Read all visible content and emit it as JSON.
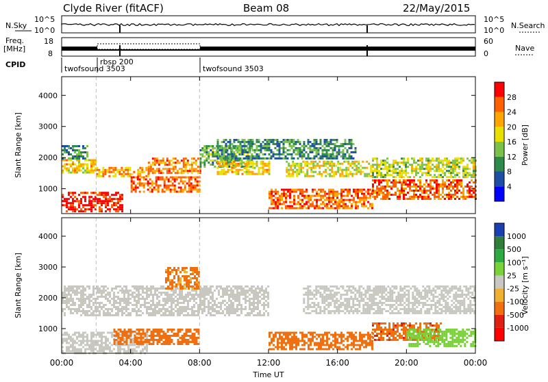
{
  "header": {
    "station": "Clyde River (fitACF)",
    "beam": "Beam 08",
    "date": "22/May/2015"
  },
  "top_panels": {
    "nsky_label": "N.Sky",
    "nsearch_label": "N.Search",
    "freq_label_1": "Freq.",
    "freq_label_2": "[MHz]",
    "nave_label": "Nave",
    "cpid_label": "CPID",
    "nsky_ticks": [
      "10^5",
      "10^0"
    ],
    "nsearch_ticks": [
      "10^5",
      "10^0"
    ],
    "freq_ticks": [
      "18",
      "8"
    ],
    "nave_ticks": [
      "60",
      "0"
    ],
    "cpid_segments": [
      {
        "start_hour": 0,
        "label": "twofsound 3503"
      },
      {
        "start_hour": 2,
        "label": "rbsp 200"
      },
      {
        "start_hour": 8,
        "label": "twofsound 3503"
      }
    ]
  },
  "chart_data": [
    {
      "type": "heatmap",
      "title": "",
      "xlabel": "",
      "ylabel": "Slant Range [km]",
      "xlim": [
        0,
        24
      ],
      "ylim": [
        200,
        4600
      ],
      "ytick_labels": [
        "1000",
        "2000",
        "3000",
        "4000"
      ],
      "colorbar": {
        "label": "Power [dB]",
        "range": [
          0,
          32
        ],
        "tick_labels": [
          "4",
          "8",
          "12",
          "16",
          "20",
          "24",
          "28"
        ],
        "colors": [
          "#0000ff",
          "#1e4fa6",
          "#2e8a4a",
          "#7ac24a",
          "#e8e000",
          "#ffa500",
          "#ff6000",
          "#ff0000"
        ]
      },
      "echo_bands": [
        {
          "x": [
            0,
            2
          ],
          "y": [
            1550,
            1950
          ],
          "value": 20
        },
        {
          "x": [
            0,
            1.5
          ],
          "y": [
            2000,
            2400
          ],
          "value": 10
        },
        {
          "x": [
            0,
            3.5
          ],
          "y": [
            300,
            900
          ],
          "value": 30
        },
        {
          "x": [
            2,
            5
          ],
          "y": [
            1400,
            1700
          ],
          "value": 22
        },
        {
          "x": [
            4,
            8
          ],
          "y": [
            900,
            1400
          ],
          "value": 26
        },
        {
          "x": [
            5,
            8
          ],
          "y": [
            1500,
            2000
          ],
          "value": 24
        },
        {
          "x": [
            8,
            11
          ],
          "y": [
            1700,
            2400
          ],
          "value": 12
        },
        {
          "x": [
            9,
            12
          ],
          "y": [
            1500,
            1900
          ],
          "value": 20
        },
        {
          "x": [
            9,
            17
          ],
          "y": [
            2000,
            2600
          ],
          "value": 10
        },
        {
          "x": [
            12,
            18
          ],
          "y": [
            400,
            1000
          ],
          "value": 26
        },
        {
          "x": [
            13,
            18
          ],
          "y": [
            1400,
            1900
          ],
          "value": 18
        },
        {
          "x": [
            18,
            24
          ],
          "y": [
            700,
            1300
          ],
          "value": 26
        },
        {
          "x": [
            18,
            24
          ],
          "y": [
            1400,
            2000
          ],
          "value": 16
        }
      ]
    },
    {
      "type": "heatmap",
      "title": "",
      "xlabel": "Time UT",
      "ylabel": "Slant Range [km]",
      "xlim": [
        0,
        24
      ],
      "ylim": [
        200,
        4600
      ],
      "xtick_labels": [
        "00:00",
        "04:00",
        "08:00",
        "12:00",
        "16:00",
        "20:00",
        "00:00"
      ],
      "ytick_labels": [
        "1000",
        "2000",
        "3000",
        "4000"
      ],
      "colorbar": {
        "label": "Velocity [m s⁻¹]",
        "tick_labels": [
          "1000",
          "500",
          "100",
          "25",
          "-25",
          "-100",
          "-500",
          "-1000"
        ],
        "colors": [
          "#1a3fb0",
          "#2f7f3a",
          "#2faa40",
          "#7ad23a",
          "#c8c8c0",
          "#f0b030",
          "#f07010",
          "#e02010",
          "#ff0000"
        ]
      },
      "echo_bands": [
        {
          "x": [
            0,
            12
          ],
          "y": [
            1400,
            2400
          ],
          "value": 0
        },
        {
          "x": [
            0,
            5
          ],
          "y": [
            200,
            900
          ],
          "value": 0
        },
        {
          "x": [
            3,
            8
          ],
          "y": [
            500,
            1000
          ],
          "value": -300
        },
        {
          "x": [
            6,
            8
          ],
          "y": [
            2300,
            3000
          ],
          "value": -200
        },
        {
          "x": [
            12,
            18
          ],
          "y": [
            300,
            900
          ],
          "value": -300
        },
        {
          "x": [
            18,
            22
          ],
          "y": [
            600,
            1200
          ],
          "value": -400
        },
        {
          "x": [
            14,
            24
          ],
          "y": [
            1500,
            2400
          ],
          "value": 0
        },
        {
          "x": [
            20,
            24
          ],
          "y": [
            400,
            1000
          ],
          "value": 50
        }
      ]
    }
  ]
}
